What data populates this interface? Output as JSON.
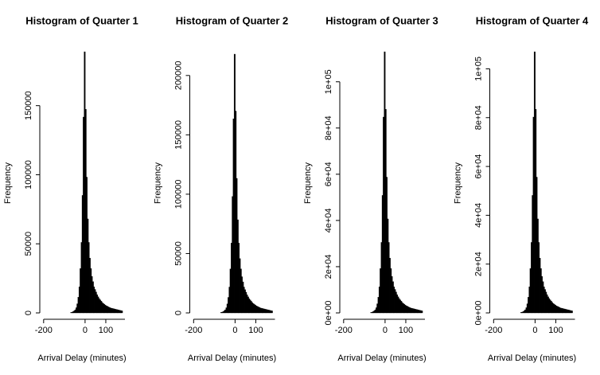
{
  "chart_data": [
    {
      "type": "histogram",
      "title": "Histogram of Quarter 1",
      "xlabel": "Arrival Delay (minutes)",
      "ylabel": "Frequency",
      "color": "#000000",
      "bins": [
        -70,
        -65,
        -60,
        -55,
        -50,
        -45,
        -40,
        -35,
        -30,
        -25,
        -20,
        -15,
        -10,
        -5,
        0,
        5,
        10,
        15,
        20,
        25,
        30,
        35,
        40,
        45,
        50,
        55,
        60,
        65,
        70,
        75,
        80,
        85,
        90,
        95,
        100,
        105,
        110,
        115,
        120,
        125,
        130,
        135,
        140,
        145,
        150,
        155,
        160,
        165,
        170,
        175,
        180
      ],
      "counts": [
        378,
        567,
        945,
        1512,
        2268,
        3780,
        6615,
        11340,
        18900,
        32130,
        51030,
        85050,
        141750,
        189000,
        147420,
        98280,
        68040,
        51030,
        39690,
        32130,
        26460,
        22680,
        18900,
        17010,
        15120,
        13230,
        11718,
        10395,
        9450,
        8505,
        7560,
        6804,
        6237,
        5670,
        5103,
        4725,
        4347,
        3969,
        3591,
        3402,
        3213,
        3024,
        2835,
        2646,
        2457,
        2268,
        2079,
        1890,
        1701,
        1512
      ],
      "xlim": [
        -230,
        200
      ],
      "ylim": [
        0,
        189000
      ],
      "xticks": [
        -200,
        0,
        100
      ],
      "yticks": [
        0,
        50000,
        100000,
        150000
      ]
    },
    {
      "type": "histogram",
      "title": "Histogram of Quarter 2",
      "xlabel": "Arrival Delay (minutes)",
      "ylabel": "Frequency",
      "color": "#000000",
      "bins": [
        -70,
        -65,
        -60,
        -55,
        -50,
        -45,
        -40,
        -35,
        -30,
        -25,
        -20,
        -15,
        -10,
        -5,
        0,
        5,
        10,
        15,
        20,
        25,
        30,
        35,
        40,
        45,
        50,
        55,
        60,
        65,
        70,
        75,
        80,
        85,
        90,
        95,
        100,
        105,
        110,
        115,
        120,
        125,
        130,
        135,
        140,
        145,
        150,
        155,
        160,
        165,
        170,
        175,
        180
      ],
      "counts": [
        436,
        654,
        1090,
        1744,
        2616,
        4360,
        7630,
        13080,
        21800,
        37060,
        58860,
        98100,
        163500,
        218000,
        170040,
        113360,
        78480,
        58860,
        45780,
        37060,
        30520,
        26160,
        21800,
        19620,
        17440,
        15260,
        13516,
        11990,
        10900,
        9810,
        8720,
        7848,
        7194,
        6540,
        5886,
        5450,
        5014,
        4578,
        4142,
        3924,
        3706,
        3488,
        3270,
        3052,
        2834,
        2616,
        2398,
        2180,
        1962,
        1744
      ],
      "xlim": [
        -230,
        200
      ],
      "ylim": [
        0,
        220000
      ],
      "xticks": [
        -200,
        0,
        100
      ],
      "yticks": [
        0,
        50000,
        100000,
        150000,
        200000
      ]
    },
    {
      "type": "histogram",
      "title": "Histogram of Quarter 3",
      "xlabel": "Arrival Delay (minutes)",
      "ylabel": "Frequency",
      "color": "#000000",
      "bins": [
        -70,
        -65,
        -60,
        -55,
        -50,
        -45,
        -40,
        -35,
        -30,
        -25,
        -20,
        -15,
        -10,
        -5,
        0,
        5,
        10,
        15,
        20,
        25,
        30,
        35,
        40,
        45,
        50,
        55,
        60,
        65,
        70,
        75,
        80,
        85,
        90,
        95,
        100,
        105,
        110,
        115,
        120,
        125,
        130,
        135,
        140,
        145,
        150,
        155,
        160,
        165,
        170,
        175,
        180
      ],
      "counts": [
        226,
        339,
        565,
        904,
        1356,
        2260,
        3955,
        6780,
        11300,
        19210,
        30510,
        50850,
        84750,
        113000,
        88140,
        58760,
        40680,
        30510,
        23730,
        19210,
        15820,
        13560,
        11300,
        10170,
        9040,
        7910,
        7006,
        6215,
        5650,
        5085,
        4520,
        4068,
        3729,
        3390,
        3051,
        2825,
        2599,
        2373,
        2147,
        2034,
        1921,
        1808,
        1695,
        1582,
        1469,
        1356,
        1243,
        1130,
        1017,
        904
      ],
      "xlim": [
        -230,
        200
      ],
      "ylim": [
        0,
        113000
      ],
      "xticks": [
        -200,
        0,
        100
      ],
      "yticks": [
        {
          "value": 0,
          "label": "0e+00"
        },
        {
          "value": 20000,
          "label": "2e+04"
        },
        {
          "value": 40000,
          "label": "4e+04"
        },
        {
          "value": 60000,
          "label": "6e+04"
        },
        {
          "value": 80000,
          "label": "8e+04"
        },
        {
          "value": 100000,
          "label": "1e+05"
        }
      ]
    },
    {
      "type": "histogram",
      "title": "Histogram of Quarter 4",
      "xlabel": "Arrival Delay (minutes)",
      "ylabel": "Frequency",
      "color": "#000000",
      "bins": [
        -70,
        -65,
        -60,
        -55,
        -50,
        -45,
        -40,
        -35,
        -30,
        -25,
        -20,
        -15,
        -10,
        -5,
        0,
        5,
        10,
        15,
        20,
        25,
        30,
        35,
        40,
        45,
        50,
        55,
        60,
        65,
        70,
        75,
        80,
        85,
        90,
        95,
        100,
        105,
        110,
        115,
        120,
        125,
        130,
        135,
        140,
        145,
        150,
        155,
        160,
        165,
        170,
        175,
        180
      ],
      "counts": [
        214,
        321,
        535,
        856,
        1284,
        2140,
        3745,
        6420,
        10700,
        18190,
        28890,
        48150,
        80250,
        107000,
        83460,
        55640,
        38520,
        28890,
        22470,
        18190,
        14980,
        12840,
        10700,
        9630,
        8560,
        7490,
        6634,
        5885,
        5350,
        4815,
        4280,
        3852,
        3531,
        3210,
        2889,
        2675,
        2461,
        2247,
        2033,
        1926,
        1819,
        1712,
        1605,
        1498,
        1391,
        1284,
        1177,
        1070,
        963,
        856
      ],
      "xlim": [
        -230,
        200
      ],
      "ylim": [
        0,
        107000
      ],
      "xticks": [
        -200,
        0,
        100
      ],
      "yticks": [
        {
          "value": 0,
          "label": "0e+00"
        },
        {
          "value": 20000,
          "label": "2e+04"
        },
        {
          "value": 40000,
          "label": "4e+04"
        },
        {
          "value": 60000,
          "label": "6e+04"
        },
        {
          "value": 80000,
          "label": "8e+04"
        },
        {
          "value": 100000,
          "label": "1e+05"
        }
      ]
    }
  ]
}
